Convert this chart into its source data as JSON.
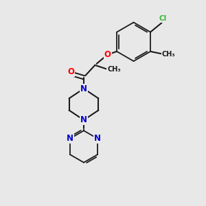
{
  "bg_color": "#e8e8e8",
  "bond_color": "#1a1a1a",
  "bond_width": 1.5,
  "atom_colors": {
    "O": "#ff0000",
    "N": "#0000cc",
    "Cl": "#3ab83a",
    "C": "#1a1a1a"
  },
  "font_size": 8.5,
  "small_font": 7.5,
  "figsize": [
    3.0,
    3.0
  ],
  "dpi": 100
}
